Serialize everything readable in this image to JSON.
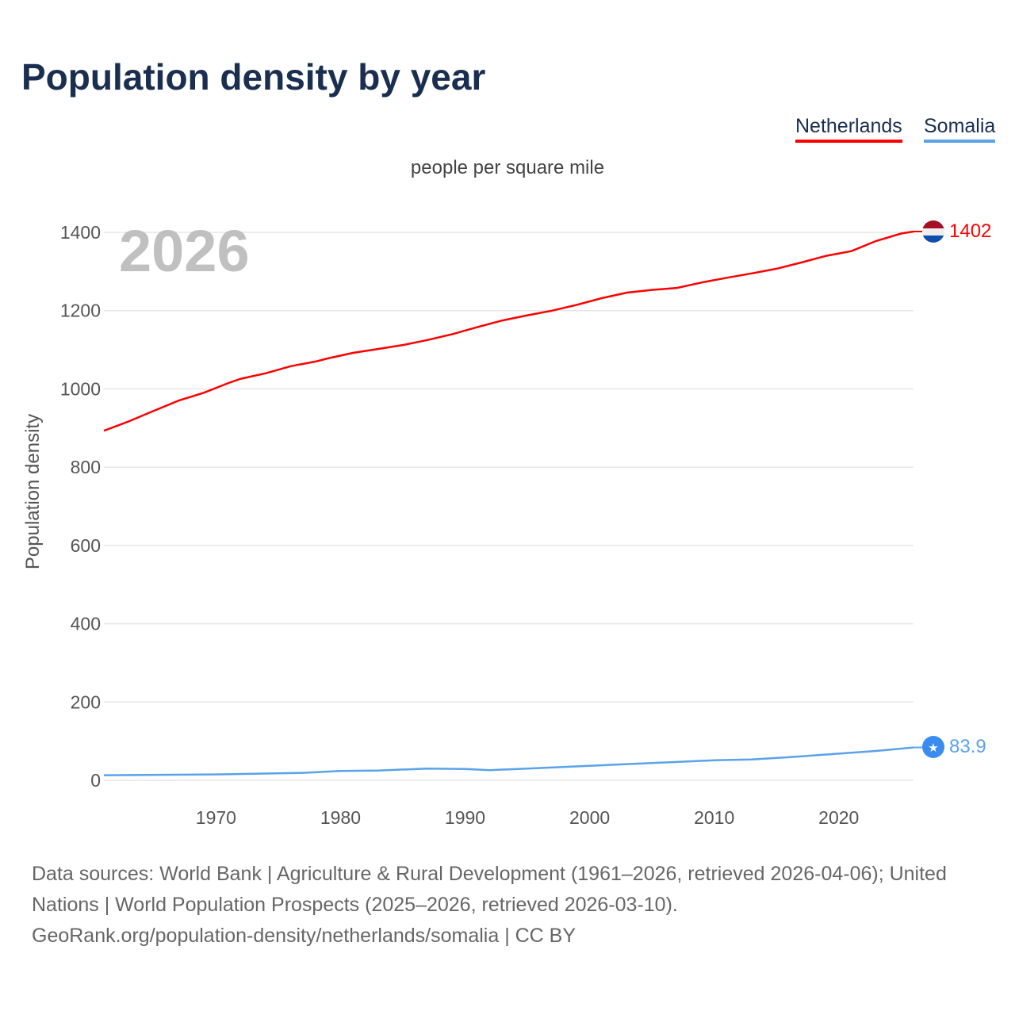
{
  "title": "Population density by year",
  "legend": [
    {
      "name": "Netherlands",
      "color": "#ff0000"
    },
    {
      "name": "Somalia",
      "color": "#5aa2ea"
    }
  ],
  "unit_label": "people per square mile",
  "year_watermark": "2026",
  "end_labels": {
    "netherlands": "1402",
    "somalia": "83.9"
  },
  "source_lines": [
    "Data sources: World Bank | Agriculture & Rural Development (1961–2026, retrieved 2026-04-06); United Nations | World Population Prospects (2025–2026, retrieved 2026-03-10).",
    "GeoRank.org/population-density/netherlands/somalia | CC BY"
  ],
  "chart_data": {
    "type": "line",
    "title": "Population density by year",
    "ylabel": "Population density",
    "xlabel": "",
    "xlim": [
      1961,
      2026
    ],
    "ylim": [
      0,
      1400
    ],
    "yticks": [
      0,
      200,
      400,
      600,
      800,
      1000,
      1200,
      1400
    ],
    "xticks": [
      1970,
      1980,
      1990,
      2000,
      2010,
      2020
    ],
    "grid": true,
    "legend_position": "top-right",
    "series": [
      {
        "name": "Netherlands",
        "color": "#ff0000",
        "points": [
          [
            1961,
            893
          ],
          [
            1963,
            917
          ],
          [
            1965,
            944
          ],
          [
            1967,
            970
          ],
          [
            1969,
            990
          ],
          [
            1971,
            1015
          ],
          [
            1972,
            1026
          ],
          [
            1974,
            1040
          ],
          [
            1976,
            1058
          ],
          [
            1978,
            1070
          ],
          [
            1979,
            1078
          ],
          [
            1981,
            1092
          ],
          [
            1983,
            1102
          ],
          [
            1985,
            1112
          ],
          [
            1987,
            1125
          ],
          [
            1989,
            1140
          ],
          [
            1991,
            1158
          ],
          [
            1993,
            1175
          ],
          [
            1995,
            1188
          ],
          [
            1997,
            1200
          ],
          [
            1999,
            1215
          ],
          [
            2001,
            1232
          ],
          [
            2003,
            1246
          ],
          [
            2005,
            1253
          ],
          [
            2007,
            1258
          ],
          [
            2009,
            1272
          ],
          [
            2011,
            1284
          ],
          [
            2013,
            1295
          ],
          [
            2015,
            1307
          ],
          [
            2017,
            1323
          ],
          [
            2019,
            1340
          ],
          [
            2021,
            1352
          ],
          [
            2023,
            1378
          ],
          [
            2025,
            1397
          ],
          [
            2026,
            1402
          ]
        ]
      },
      {
        "name": "Somalia",
        "color": "#5aa2ea",
        "points": [
          [
            1961,
            13
          ],
          [
            1970,
            15
          ],
          [
            1977,
            19
          ],
          [
            1980,
            24
          ],
          [
            1983,
            25
          ],
          [
            1987,
            30
          ],
          [
            1990,
            29
          ],
          [
            1992,
            26
          ],
          [
            1995,
            30
          ],
          [
            2000,
            37
          ],
          [
            2005,
            44
          ],
          [
            2010,
            51
          ],
          [
            2013,
            53
          ],
          [
            2016,
            59
          ],
          [
            2020,
            68
          ],
          [
            2023,
            75
          ],
          [
            2026,
            83.9
          ]
        ]
      }
    ]
  }
}
